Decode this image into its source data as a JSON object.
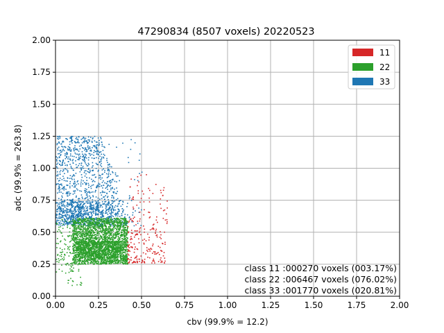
{
  "chart_data": {
    "type": "scatter",
    "title": "47290834 (8507 voxels) 20220523",
    "xlabel": "cbv (99.9% = 12.2)",
    "ylabel": "adc (99.9% = 263.8)",
    "xlim": [
      0,
      2
    ],
    "ylim": [
      0,
      2
    ],
    "xticks": [
      "0.00",
      "0.25",
      "0.50",
      "0.75",
      "1.00",
      "1.25",
      "1.50",
      "1.75",
      "2.00"
    ],
    "yticks": [
      "0.00",
      "0.25",
      "0.50",
      "0.75",
      "1.00",
      "1.25",
      "1.50",
      "1.75",
      "2.00"
    ],
    "grid": true,
    "legend_position": "top-right",
    "series": [
      {
        "name": "11",
        "color": "#d62728",
        "points_shown": 270,
        "x_range": [
          0.41,
          0.65
        ],
        "y_range": [
          0.25,
          0.95
        ]
      },
      {
        "name": "22",
        "color": "#2ca02c",
        "points_shown": 6467,
        "x_range": [
          0.0,
          0.44
        ],
        "y_range": [
          0.08,
          0.62
        ]
      },
      {
        "name": "33",
        "color": "#1f77b4",
        "points_shown": 1770,
        "x_range": [
          0.0,
          0.52
        ],
        "y_range": [
          0.55,
          1.4
        ]
      }
    ],
    "annotations": [
      "class 11 :000270 voxels (003.17%)",
      "class 22 :006467 voxels (076.02%)",
      "class 33 :001770 voxels (020.81%)"
    ]
  }
}
